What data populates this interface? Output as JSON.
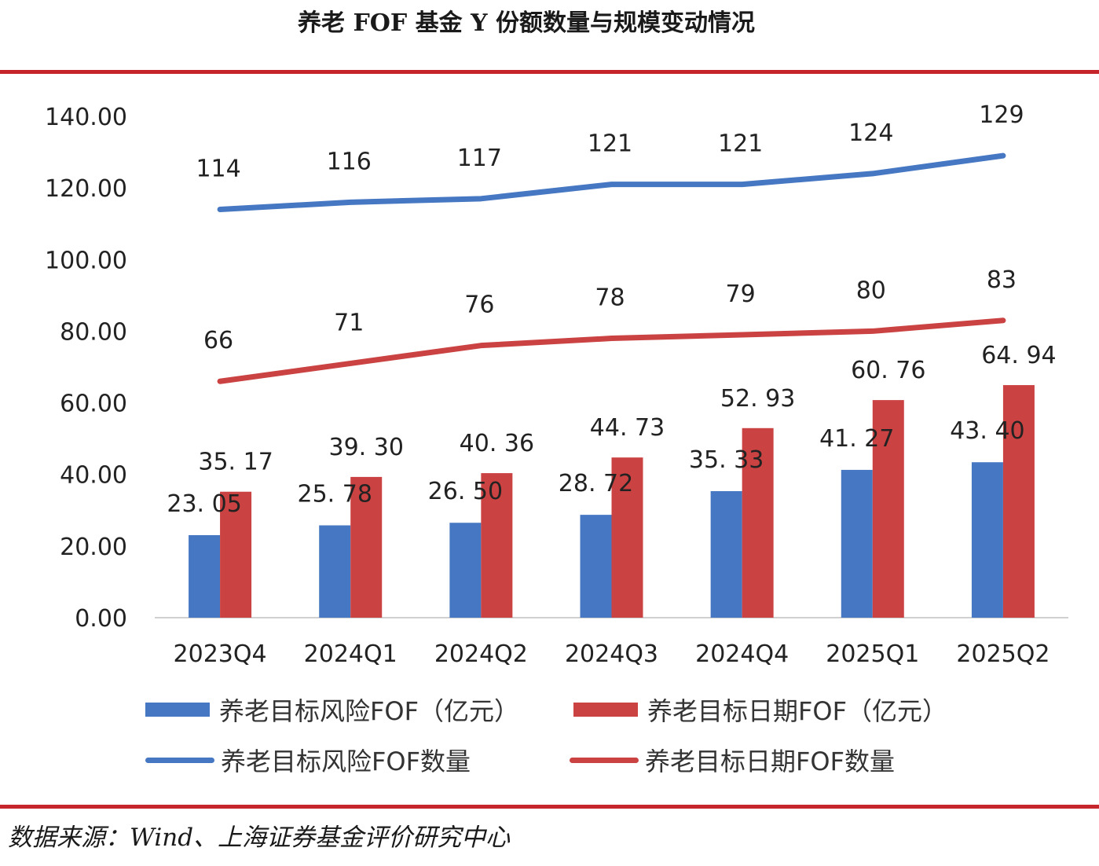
{
  "title": "养老 FOF 基金 Y 份额数量与规模变动情况",
  "source": "数据来源：Wind、上海证券基金评价研究中心",
  "colors": {
    "blue": "#4677c2",
    "red": "#cb4242",
    "rule": "#c6262b",
    "axis": "#d0d0d0"
  },
  "legend": [
    {
      "label": "养老目标风险FOF（亿元）",
      "kind": "bar",
      "color": "#4677c2"
    },
    {
      "label": "养老目标日期FOF（亿元）",
      "kind": "bar",
      "color": "#cb4242"
    },
    {
      "label": "养老目标风险FOF数量",
      "kind": "line",
      "color": "#4677c2"
    },
    {
      "label": "养老目标日期FOF数量",
      "kind": "line",
      "color": "#cb4242"
    }
  ],
  "chart_data": {
    "type": "bar",
    "title": "养老 FOF 基金 Y 份额数量与规模变动情况",
    "xlabel": "",
    "ylabel": "",
    "ylim": [
      0,
      140
    ],
    "yticks": [
      "0.00",
      "20.00",
      "40.00",
      "60.00",
      "80.00",
      "100.00",
      "120.00",
      "140.00"
    ],
    "grid": false,
    "legend_position": "bottom",
    "categories": [
      "2023Q4",
      "2024Q1",
      "2024Q2",
      "2024Q3",
      "2024Q4",
      "2025Q1",
      "2025Q2"
    ],
    "series": [
      {
        "name": "养老目标风险FOF（亿元）",
        "type": "bar",
        "color": "#4677c2",
        "values": [
          23.05,
          25.78,
          26.5,
          28.72,
          35.33,
          41.27,
          43.4
        ],
        "labels": [
          "23. 05",
          "25. 78",
          "26. 50",
          "28. 72",
          "35. 33",
          "41. 27",
          "43. 40"
        ]
      },
      {
        "name": "养老目标日期FOF（亿元）",
        "type": "bar",
        "color": "#cb4242",
        "values": [
          35.17,
          39.3,
          40.36,
          44.73,
          52.93,
          60.76,
          64.94
        ],
        "labels": [
          "35. 17",
          "39. 30",
          "40. 36",
          "44. 73",
          "52. 93",
          "60. 76",
          "64. 94"
        ]
      },
      {
        "name": "养老目标风险FOF数量",
        "type": "line",
        "color": "#4677c2",
        "values": [
          114,
          116,
          117,
          121,
          121,
          124,
          129
        ],
        "labels": [
          "114",
          "116",
          "117",
          "121",
          "121",
          "124",
          "129"
        ]
      },
      {
        "name": "养老目标日期FOF数量",
        "type": "line",
        "color": "#cb4242",
        "values": [
          66,
          71,
          76,
          78,
          79,
          80,
          83
        ],
        "labels": [
          "66",
          "71",
          "76",
          "78",
          "79",
          "80",
          "83"
        ]
      }
    ]
  }
}
